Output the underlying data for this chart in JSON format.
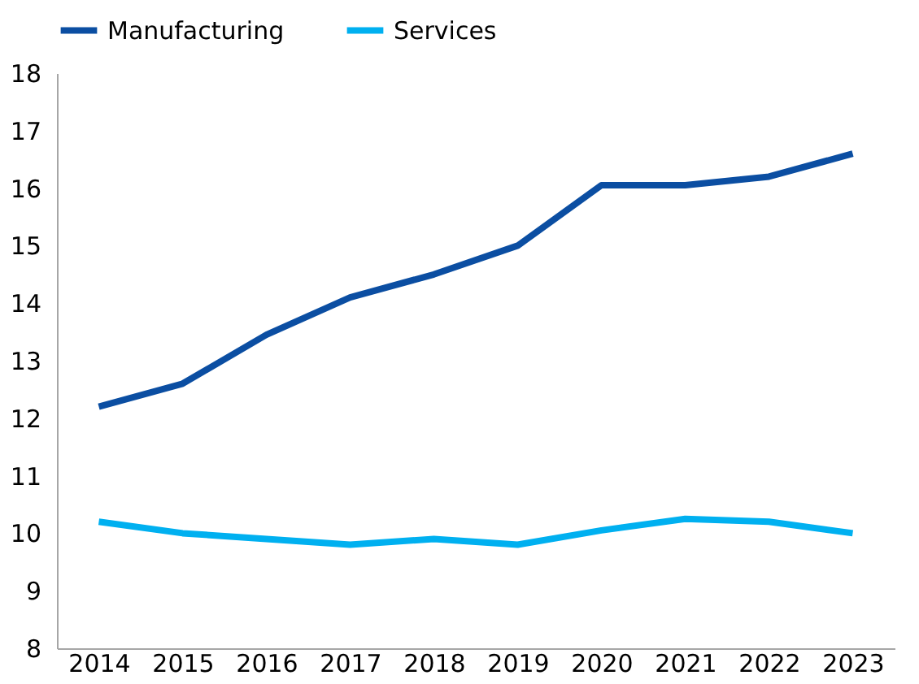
{
  "chart_data": {
    "type": "line",
    "categories": [
      "2014",
      "2015",
      "2016",
      "2017",
      "2018",
      "2019",
      "2020",
      "2021",
      "2022",
      "2023"
    ],
    "series": [
      {
        "name": "Manufacturing",
        "color": "#0b4ea2",
        "values": [
          12.2,
          12.6,
          13.45,
          14.1,
          14.5,
          15.0,
          16.05,
          16.05,
          16.2,
          16.6
        ]
      },
      {
        "name": "Services",
        "color": "#00b0f0",
        "values": [
          10.2,
          10.0,
          9.9,
          9.8,
          9.9,
          9.8,
          10.05,
          10.25,
          10.2,
          10.0
        ]
      }
    ],
    "ylim": [
      8,
      18
    ],
    "yticks": [
      8,
      9,
      10,
      11,
      12,
      13,
      14,
      15,
      16,
      17,
      18
    ],
    "grid": false,
    "legend": "top",
    "marker": "none",
    "line_style": "solid"
  }
}
